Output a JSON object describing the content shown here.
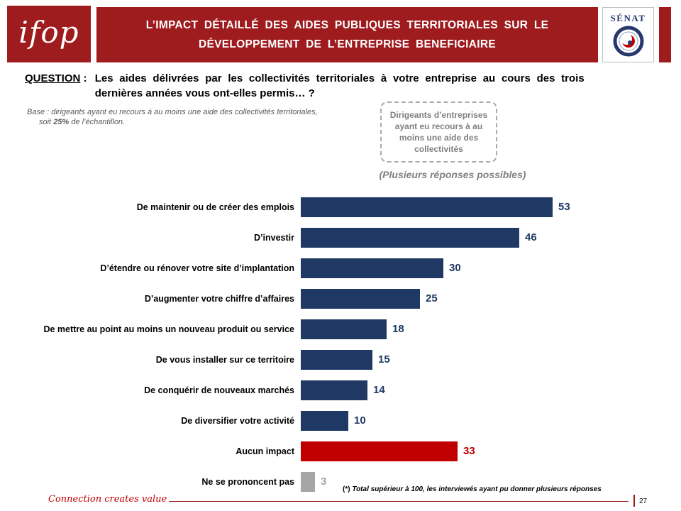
{
  "header": {
    "ifop_logo": "ifop",
    "title_line1": "L’IMPACT DÉTAILLÉ DES AIDES PUBLIQUES TERRITORIALES SUR LE",
    "title_line2": "DÉVELOPPEMENT DE L’ENTREPRISE BENEFICIAIRE",
    "senat_logo": "SÉNAT"
  },
  "question": {
    "label": "QUESTION",
    "separator": " : ",
    "text": "Les aides délivrées par les collectivités territoriales à votre entreprise au cours des trois dernières années vous ont-elles permis… ?"
  },
  "base_note": {
    "line1": "Base : dirigeants ayant eu recours à au moins une aide des collectivités territoriales,",
    "line2_pre": "soit ",
    "line2_bold": "25%",
    "line2_post": " de l’échantillon."
  },
  "callout": "Dirigeants d’entreprises ayant eu recours à au moins une aide des collectivités",
  "subtitle": "(Plusieurs réponses possibles)",
  "chart_data": {
    "type": "bar",
    "orientation": "horizontal",
    "title": "",
    "xlabel": "",
    "ylabel": "",
    "xlim": [
      0,
      60
    ],
    "grid": false,
    "legend": "none",
    "value_labels": "end-of-bar",
    "categories": [
      "De maintenir ou de créer des emplois",
      "D’investir",
      "D’étendre ou rénover votre site d’implantation",
      "D’augmenter votre chiffre d’affaires",
      "De mettre au point au moins un nouveau produit ou service",
      "De vous installer sur ce territoire",
      "De conquérir de nouveaux marchés",
      "De diversifier votre activité",
      "Aucun impact",
      "Ne se prononcent pas"
    ],
    "values": [
      53,
      46,
      30,
      25,
      18,
      15,
      14,
      10,
      33,
      3
    ],
    "bar_colors": [
      "navy",
      "navy",
      "navy",
      "navy",
      "navy",
      "navy",
      "navy",
      "navy",
      "red",
      "gray"
    ]
  },
  "footnote": {
    "marker": "(*)",
    "text": " Total supérieur à 100, les interviewés ayant pu donner plusieurs réponses"
  },
  "footer": {
    "tagline": "Connection creates value",
    "page_number": "27"
  },
  "colors": {
    "banner": "#9E1B1E",
    "navy": "#1F3864",
    "red": "#C00000",
    "gray": "#A6A6A6"
  }
}
